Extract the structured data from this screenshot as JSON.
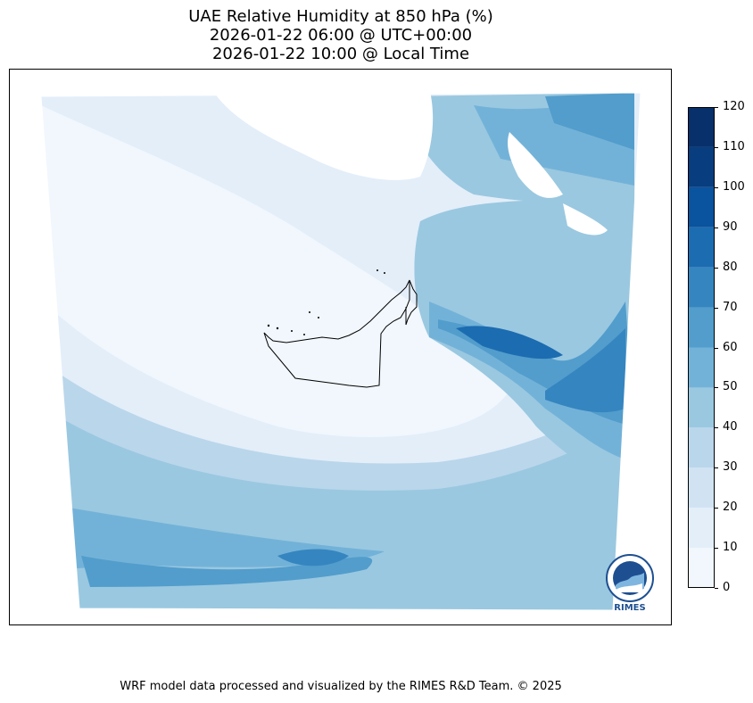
{
  "title": {
    "line1": "UAE Relative Humidity at 850 hPa (%)",
    "line2": "2026-01-22 06:00 @ UTC+00:00",
    "line3": "2026-01-22 10:00 @ Local Time"
  },
  "colorbar": {
    "levels": [
      0,
      10,
      20,
      30,
      40,
      50,
      60,
      70,
      80,
      90,
      100,
      110,
      120
    ],
    "labels": [
      "0",
      "10",
      "20",
      "30",
      "40",
      "50",
      "60",
      "70",
      "80",
      "90",
      "100",
      "110",
      "120"
    ],
    "colors": [
      "#f1f7fd",
      "#e3eef9",
      "#d1e3f3",
      "#bad6eb",
      "#9ac8e0",
      "#73b2d8",
      "#529dcc",
      "#3585c0",
      "#1c6cb1",
      "#0a539e",
      "#083d7f",
      "#08306b"
    ]
  },
  "logo": {
    "text": "RIMES"
  },
  "credit": "WRF model data processed and visualized by the RIMES R&D Team. © 2025"
}
